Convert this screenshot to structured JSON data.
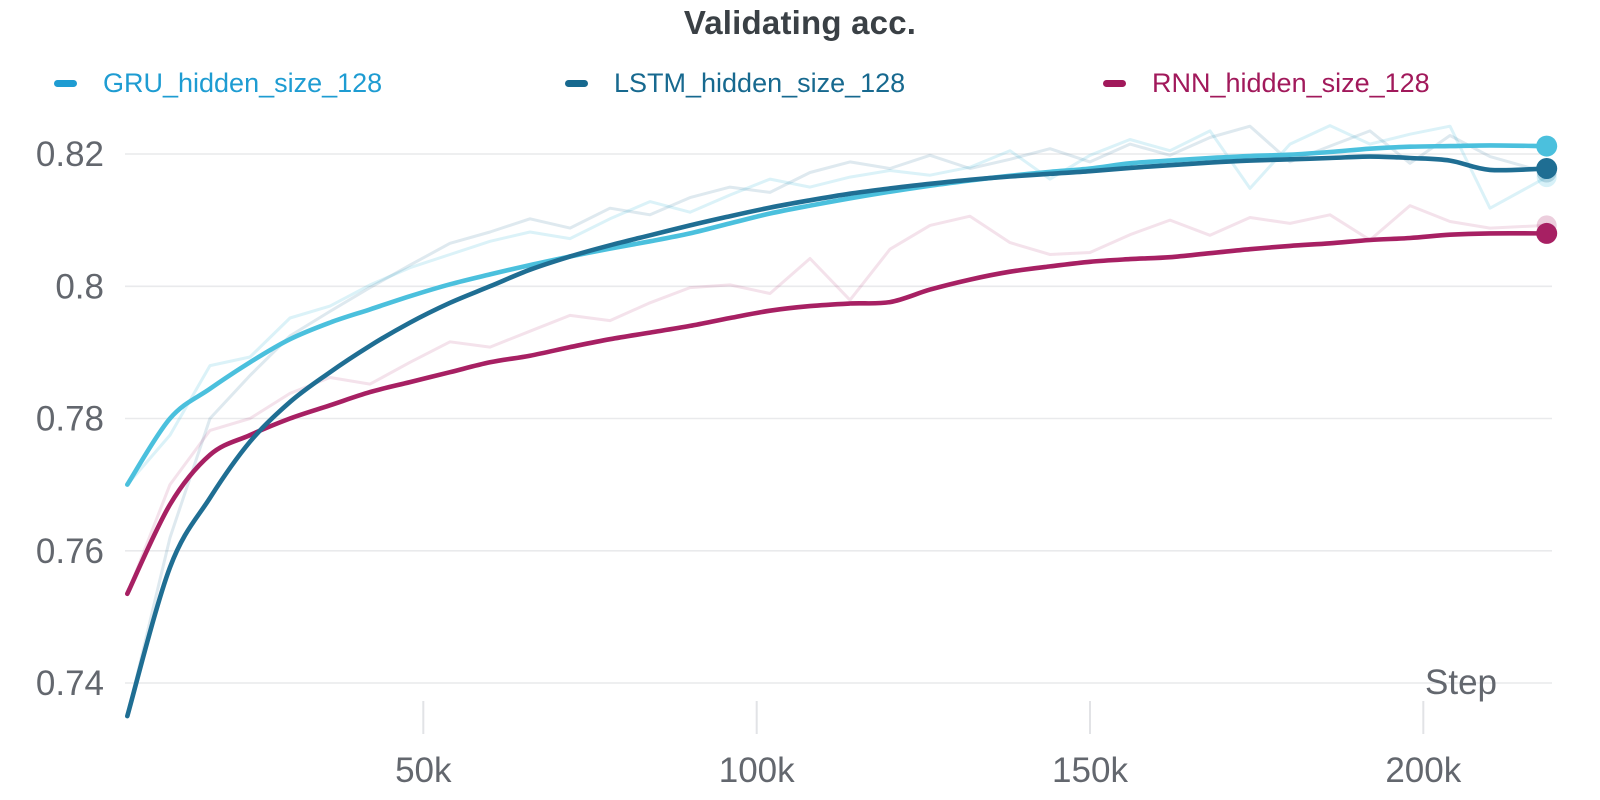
{
  "title": "Validating acc.",
  "legend": [
    {
      "label": "GRU_hidden_size_128",
      "color": "#1e9cd2"
    },
    {
      "label": "LSTM_hidden_size_128",
      "color": "#17698f"
    },
    {
      "label": "RNN_hidden_size_128",
      "color": "#a1195b"
    }
  ],
  "chart_data": {
    "type": "line",
    "title": "Validating acc.",
    "xlabel": "Step",
    "ylabel": "",
    "grid": "horizontal-only",
    "legend_position": "top",
    "x_range": [
      5600,
      218500
    ],
    "y_range": [
      0.733,
      0.824
    ],
    "x_ticks": [
      {
        "value": 50000,
        "label": "50k"
      },
      {
        "value": 100000,
        "label": "100k"
      },
      {
        "value": 150000,
        "label": "150k"
      },
      {
        "value": 200000,
        "label": "200k"
      }
    ],
    "y_ticks": [
      {
        "value": 0.82,
        "label": "0.82"
      },
      {
        "value": 0.8,
        "label": "0.8"
      },
      {
        "value": 0.78,
        "label": "0.78"
      },
      {
        "value": 0.76,
        "label": "0.76"
      },
      {
        "value": 0.74,
        "label": "0.74"
      }
    ],
    "steps": [
      5600,
      12000,
      18000,
      24000,
      30000,
      36000,
      42000,
      48000,
      54000,
      60000,
      66000,
      72000,
      78000,
      84000,
      90000,
      96000,
      102000,
      108000,
      114000,
      120000,
      126000,
      132000,
      138000,
      144000,
      150000,
      156000,
      162000,
      168000,
      174000,
      180000,
      186000,
      192000,
      198000,
      204000,
      210000,
      218500
    ],
    "series": [
      {
        "name": "GRU_hidden_size_128",
        "color": "#4bc0dd",
        "raw_opacity": 0.2,
        "smoothed": [
          0.77,
          0.78,
          0.7845,
          0.7885,
          0.792,
          0.7945,
          0.7965,
          0.7985,
          0.8003,
          0.8018,
          0.8032,
          0.8045,
          0.8057,
          0.8068,
          0.808,
          0.8095,
          0.811,
          0.8122,
          0.8133,
          0.8143,
          0.8152,
          0.816,
          0.8167,
          0.8173,
          0.8178,
          0.8186,
          0.819,
          0.8194,
          0.8197,
          0.8199,
          0.8203,
          0.8208,
          0.8211,
          0.8212,
          0.8213,
          0.8212
        ],
        "raw": [
          0.77,
          0.7775,
          0.788,
          0.7893,
          0.7952,
          0.797,
          0.8002,
          0.8028,
          0.8048,
          0.8068,
          0.8082,
          0.8072,
          0.8102,
          0.8128,
          0.8112,
          0.8138,
          0.8162,
          0.815,
          0.8165,
          0.8175,
          0.8168,
          0.818,
          0.8205,
          0.8162,
          0.8198,
          0.8222,
          0.8205,
          0.8235,
          0.8148,
          0.8215,
          0.8243,
          0.8215,
          0.823,
          0.8242,
          0.8118,
          0.8165
        ]
      },
      {
        "name": "LSTM_hidden_size_128",
        "color": "#1f6e93",
        "raw_opacity": 0.15,
        "smoothed": [
          0.735,
          0.7575,
          0.768,
          0.7765,
          0.7825,
          0.787,
          0.791,
          0.7945,
          0.7975,
          0.8,
          0.8025,
          0.8045,
          0.8062,
          0.8077,
          0.8092,
          0.8106,
          0.8119,
          0.813,
          0.814,
          0.8148,
          0.8155,
          0.8161,
          0.8166,
          0.817,
          0.8174,
          0.8179,
          0.8183,
          0.8187,
          0.819,
          0.8192,
          0.8194,
          0.8196,
          0.8194,
          0.819,
          0.8176,
          0.8178
        ],
        "raw": [
          0.735,
          0.762,
          0.78,
          0.7865,
          0.7925,
          0.7962,
          0.7998,
          0.8032,
          0.8065,
          0.8082,
          0.8102,
          0.8088,
          0.8118,
          0.8108,
          0.8134,
          0.815,
          0.8142,
          0.8172,
          0.8188,
          0.8178,
          0.8198,
          0.8178,
          0.8192,
          0.8208,
          0.8188,
          0.8215,
          0.8198,
          0.8225,
          0.8242,
          0.8188,
          0.8212,
          0.8235,
          0.8186,
          0.8228,
          0.8196,
          0.8172
        ]
      },
      {
        "name": "RNN_hidden_size_128",
        "color": "#a72063",
        "raw_opacity": 0.13,
        "smoothed": [
          0.7535,
          0.767,
          0.7745,
          0.7775,
          0.78,
          0.782,
          0.784,
          0.7855,
          0.787,
          0.7885,
          0.7895,
          0.7908,
          0.792,
          0.793,
          0.794,
          0.7952,
          0.7963,
          0.797,
          0.7974,
          0.7976,
          0.7995,
          0.801,
          0.8022,
          0.803,
          0.8037,
          0.8041,
          0.8044,
          0.805,
          0.8056,
          0.8061,
          0.8065,
          0.807,
          0.8073,
          0.8078,
          0.808,
          0.808
        ],
        "raw": [
          0.7535,
          0.77,
          0.7782,
          0.78,
          0.7838,
          0.7862,
          0.7852,
          0.7885,
          0.7916,
          0.7908,
          0.7932,
          0.7956,
          0.7948,
          0.7975,
          0.7998,
          0.8002,
          0.7989,
          0.8042,
          0.7979,
          0.8056,
          0.8092,
          0.8106,
          0.8066,
          0.8048,
          0.8051,
          0.8078,
          0.81,
          0.8077,
          0.8104,
          0.8095,
          0.8108,
          0.807,
          0.8122,
          0.8098,
          0.8088,
          0.8092
        ]
      }
    ]
  }
}
